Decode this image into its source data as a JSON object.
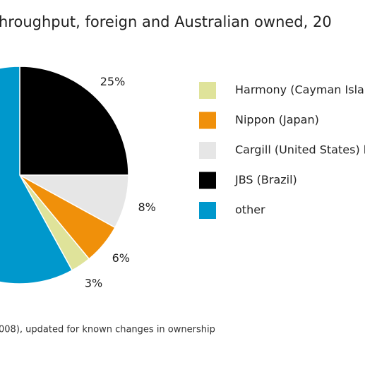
{
  "chart_data": {
    "type": "pie",
    "title": "hroughput, foreign and Australian owned, 20",
    "note": "008), updated for known changes in ownership",
    "categories": [
      "Harmony (Cayman Isla",
      "Nippon (Japan)",
      "Cargill (United States) l",
      "JBS (Brazil)",
      "other"
    ],
    "values": [
      3,
      6,
      8,
      25,
      58
    ],
    "value_labels": [
      "3%",
      "6%",
      "8%",
      "25%",
      null
    ],
    "colors": [
      "#dfe39a",
      "#f0900a",
      "#e6e6e6",
      "#000000",
      "#0098cc"
    ]
  }
}
